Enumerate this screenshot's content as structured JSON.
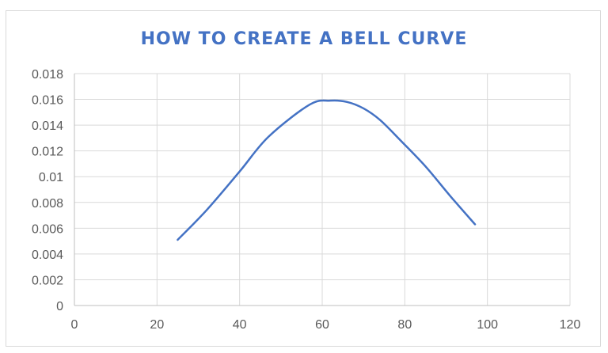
{
  "chart_data": {
    "type": "line",
    "title": "HOW TO CREATE A BELL CURVE",
    "xlabel": "",
    "ylabel": "",
    "xlim": [
      0,
      120
    ],
    "ylim": [
      0,
      0.018
    ],
    "x_ticks": [
      0,
      20,
      40,
      60,
      80,
      100,
      120
    ],
    "x_tick_labels": [
      "0",
      "20",
      "40",
      "60",
      "80",
      "100",
      "120"
    ],
    "y_ticks": [
      0,
      0.002,
      0.004,
      0.006,
      0.008,
      0.01,
      0.012,
      0.014,
      0.016,
      0.018
    ],
    "y_tick_labels": [
      "0",
      "0.002",
      "0.004",
      "0.006",
      "0.008",
      "0.01",
      "0.012",
      "0.014",
      "0.016",
      "0.018"
    ],
    "grid": true,
    "legend": false,
    "series": [
      {
        "color": "#4472c4",
        "x": [
          25,
          32,
          40,
          47,
          57,
          62,
          66,
          70,
          74,
          79,
          85,
          91,
          97
        ],
        "y": [
          0.0051,
          0.0074,
          0.0104,
          0.0131,
          0.0156,
          0.0159,
          0.0158,
          0.0153,
          0.0144,
          0.0128,
          0.0108,
          0.0085,
          0.0063
        ]
      }
    ]
  }
}
